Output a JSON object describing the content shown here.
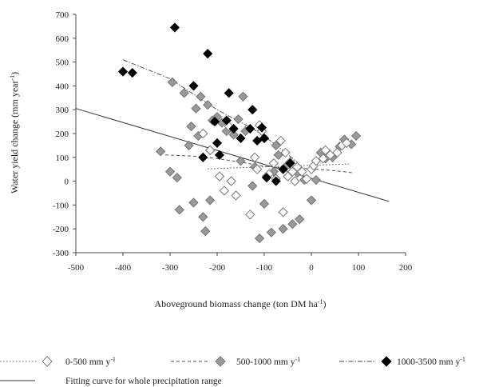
{
  "chart_data": {
    "type": "scatter",
    "title": "",
    "xlabel": "Aboveground biomass change (ton DM ha",
    "xlabel_sup": "-1",
    "xlabel_end": ")",
    "ylabel": "Water yield change (mm year",
    "ylabel_sup": "-1",
    "ylabel_end": ")",
    "xlim": [
      -500,
      200
    ],
    "ylim": [
      -300,
      700
    ],
    "xticks": [
      -500,
      -400,
      -300,
      -200,
      -100,
      0,
      100,
      200
    ],
    "yticks": [
      -300,
      -200,
      -100,
      0,
      100,
      200,
      300,
      400,
      500,
      600,
      700
    ],
    "grid": false,
    "legend_position": "bottom",
    "series": [
      {
        "name": "0-500 mm y",
        "name_sup": "-1",
        "marker": "diamond-open",
        "color": "#777777",
        "fit_style": "dotted",
        "fit_line": [
          [
            -220,
            52
          ],
          [
            80,
            72
          ]
        ],
        "points": [
          [
            -230,
            200
          ],
          [
            -215,
            130
          ],
          [
            -195,
            20
          ],
          [
            -185,
            -40
          ],
          [
            -175,
            230
          ],
          [
            -170,
            0
          ],
          [
            -160,
            -60
          ],
          [
            -130,
            -140
          ],
          [
            -120,
            100
          ],
          [
            -115,
            50
          ],
          [
            -110,
            235
          ],
          [
            -105,
            210
          ],
          [
            -100,
            180
          ],
          [
            -90,
            30
          ],
          [
            -80,
            75
          ],
          [
            -75,
            10
          ],
          [
            -65,
            170
          ],
          [
            -60,
            -130
          ],
          [
            -55,
            120
          ],
          [
            -50,
            20
          ],
          [
            -45,
            80
          ],
          [
            -40,
            40
          ],
          [
            -35,
            0
          ],
          [
            -30,
            60
          ],
          [
            -20,
            40
          ],
          [
            -10,
            10
          ],
          [
            0,
            50
          ],
          [
            5,
            65
          ],
          [
            10,
            85
          ],
          [
            25,
            95
          ],
          [
            30,
            130
          ],
          [
            40,
            110
          ],
          [
            55,
            120
          ],
          [
            65,
            150
          ],
          [
            75,
            160
          ]
        ]
      },
      {
        "name": "500-1000 mm y",
        "name_sup": "-1",
        "marker": "diamond-filled",
        "color": "#999999",
        "fit_style": "dashed",
        "fit_line": [
          [
            -310,
            110
          ],
          [
            -250,
            105
          ],
          [
            -200,
            95
          ],
          [
            -150,
            80
          ],
          [
            -100,
            62
          ],
          [
            -50,
            55
          ],
          [
            0,
            52
          ],
          [
            50,
            44
          ],
          [
            90,
            35
          ]
        ],
        "points": [
          [
            -320,
            125
          ],
          [
            -300,
            40
          ],
          [
            -295,
            415
          ],
          [
            -285,
            15
          ],
          [
            -280,
            -120
          ],
          [
            -270,
            370
          ],
          [
            -260,
            150
          ],
          [
            -255,
            230
          ],
          [
            -250,
            -90
          ],
          [
            -245,
            305
          ],
          [
            -240,
            190
          ],
          [
            -235,
            355
          ],
          [
            -230,
            -150
          ],
          [
            -225,
            -210
          ],
          [
            -220,
            320
          ],
          [
            -215,
            -80
          ],
          [
            -210,
            255
          ],
          [
            -200,
            270
          ],
          [
            -190,
            245
          ],
          [
            -180,
            210
          ],
          [
            -165,
            195
          ],
          [
            -155,
            260
          ],
          [
            -150,
            85
          ],
          [
            -145,
            355
          ],
          [
            -140,
            210
          ],
          [
            -125,
            -20
          ],
          [
            -120,
            60
          ],
          [
            -110,
            -240
          ],
          [
            -100,
            -95
          ],
          [
            -95,
            20
          ],
          [
            -85,
            -215
          ],
          [
            -80,
            40
          ],
          [
            -75,
            150
          ],
          [
            -70,
            110
          ],
          [
            -60,
            -200
          ],
          [
            -50,
            70
          ],
          [
            -40,
            -180
          ],
          [
            -30,
            35
          ],
          [
            -25,
            -160
          ],
          [
            -15,
            5
          ],
          [
            0,
            -80
          ],
          [
            10,
            5
          ],
          [
            20,
            120
          ],
          [
            30,
            95
          ],
          [
            45,
            100
          ],
          [
            60,
            145
          ],
          [
            70,
            175
          ],
          [
            85,
            155
          ],
          [
            95,
            190
          ]
        ]
      },
      {
        "name": "1000-3500 mm y",
        "name_sup": "-1",
        "marker": "diamond-filled",
        "color": "#000000",
        "fit_style": "dashdot",
        "fit_line": [
          [
            -400,
            510
          ],
          [
            -300,
            430
          ],
          [
            -200,
            300
          ],
          [
            -120,
            215
          ],
          [
            -80,
            160
          ],
          [
            -30,
            80
          ]
        ],
        "points": [
          [
            -400,
            460
          ],
          [
            -380,
            455
          ],
          [
            -290,
            645
          ],
          [
            -250,
            400
          ],
          [
            -230,
            100
          ],
          [
            -220,
            535
          ],
          [
            -205,
            250
          ],
          [
            -200,
            160
          ],
          [
            -195,
            110
          ],
          [
            -180,
            255
          ],
          [
            -175,
            370
          ],
          [
            -165,
            220
          ],
          [
            -150,
            180
          ],
          [
            -130,
            220
          ],
          [
            -125,
            300
          ],
          [
            -115,
            170
          ],
          [
            -105,
            225
          ],
          [
            -100,
            180
          ],
          [
            -95,
            15
          ],
          [
            -75,
            0
          ],
          [
            -60,
            50
          ],
          [
            -45,
            75
          ]
        ]
      }
    ],
    "overall_fit": {
      "name": "Fitting curve for whole precipitation range",
      "line": [
        [
          -500,
          305
        ],
        [
          165,
          -85
        ]
      ],
      "style": "solid"
    }
  }
}
